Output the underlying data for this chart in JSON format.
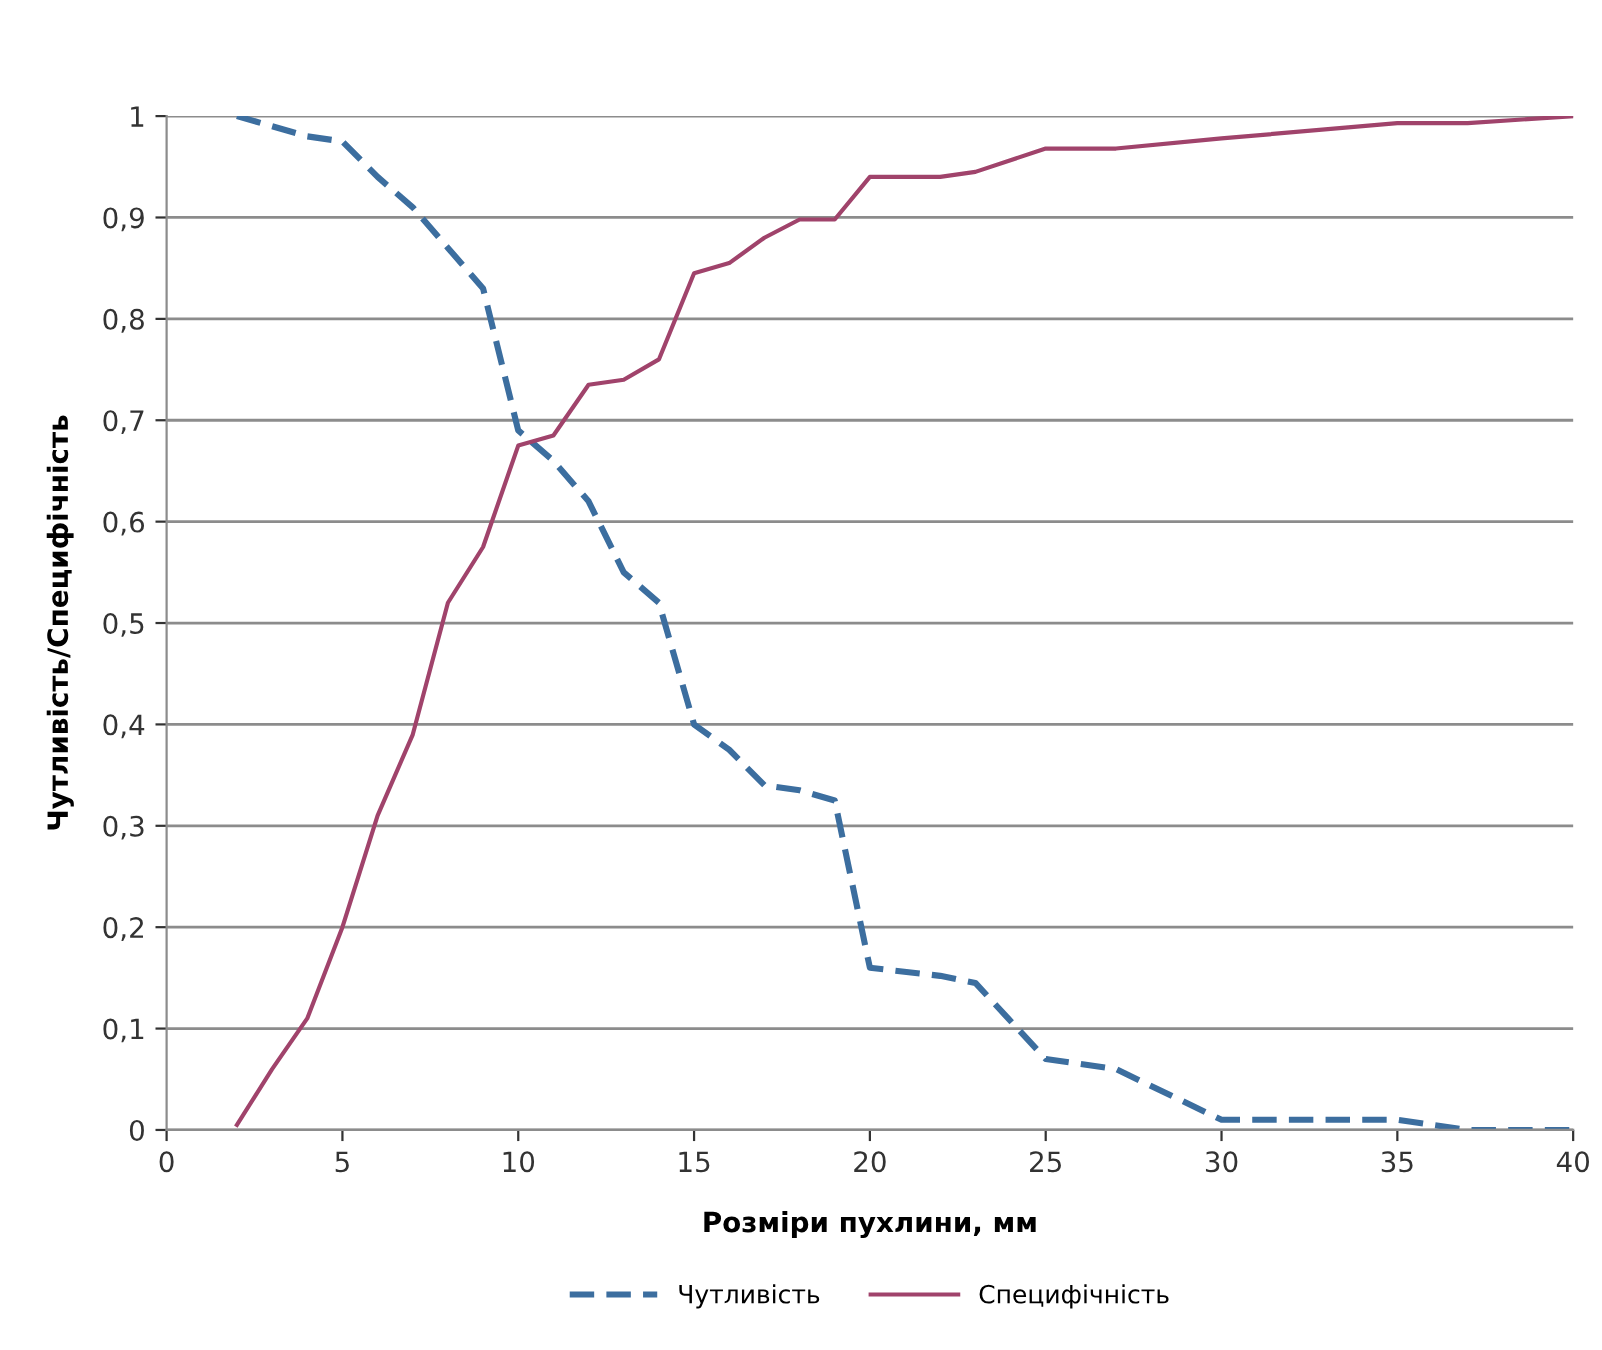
{
  "chart_data": {
    "type": "line",
    "xlabel": "Розміри пухлини, мм",
    "ylabel": "Чутливість/Специфічність",
    "xlim": [
      0,
      40
    ],
    "xticks": [
      0,
      5,
      10,
      15,
      20,
      25,
      30,
      35,
      40
    ],
    "ylim": [
      0,
      1
    ],
    "yticks": [
      0,
      {
        "value": 0.1,
        "label": "0,1"
      },
      {
        "value": 0.2,
        "label": "0,2"
      },
      {
        "value": 0.3,
        "label": "0,3"
      },
      {
        "value": 0.4,
        "label": "0,4"
      },
      {
        "value": 0.5,
        "label": "0,5"
      },
      {
        "value": 0.6,
        "label": "0,6"
      },
      {
        "value": 0.7,
        "label": "0,7"
      },
      {
        "value": 0.8,
        "label": "0,8"
      },
      {
        "value": 0.9,
        "label": "0,9"
      },
      1
    ],
    "grid": "y",
    "legend": "bottom",
    "marker": "none",
    "series": [
      {
        "name": "Чутливість",
        "color": "#3c6e9f",
        "line_style": "dashed",
        "x": [
          2,
          4,
          5,
          6,
          7,
          8,
          9,
          10,
          11,
          12,
          13,
          14,
          15,
          16,
          17,
          18,
          19,
          20,
          22,
          23,
          25,
          27,
          30,
          35,
          37,
          40
        ],
        "values": [
          1.0,
          0.98,
          0.975,
          0.94,
          0.91,
          0.87,
          0.83,
          0.69,
          0.66,
          0.62,
          0.55,
          0.52,
          0.4,
          0.375,
          0.34,
          0.335,
          0.325,
          0.16,
          0.152,
          0.145,
          0.07,
          0.06,
          0.01,
          0.01,
          0.0,
          0.0
        ]
      },
      {
        "name": "Специфічність",
        "color": "#a0436b",
        "line_style": "solid",
        "x": [
          2,
          3,
          4,
          5,
          6,
          7,
          8,
          9,
          10,
          11,
          12,
          13,
          14,
          15,
          16,
          17,
          18,
          19,
          20,
          22,
          23,
          25,
          27,
          30,
          35,
          37,
          40
        ],
        "values": [
          0.005,
          0.06,
          0.11,
          0.2,
          0.31,
          0.39,
          0.52,
          0.575,
          0.675,
          0.685,
          0.735,
          0.74,
          0.76,
          0.845,
          0.855,
          0.88,
          0.898,
          0.898,
          0.94,
          0.94,
          0.945,
          0.968,
          0.968,
          0.978,
          0.993,
          0.993,
          1.0
        ]
      }
    ]
  }
}
